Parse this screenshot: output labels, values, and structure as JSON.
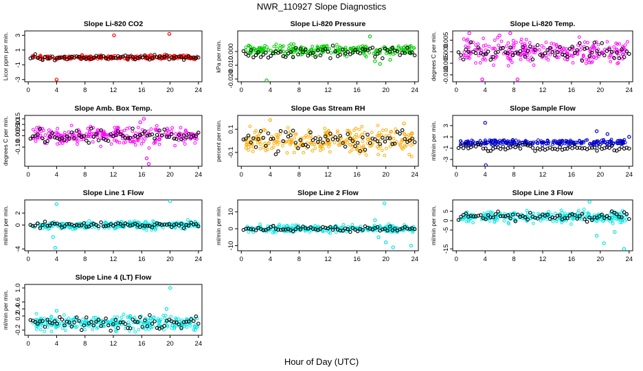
{
  "title": "NWR_110927  Slope Diagnostics",
  "xlabel": "Hour of Day (UTC)",
  "x_ticks": [
    "0",
    "4",
    "8",
    "12",
    "16",
    "20",
    "24"
  ],
  "colors": {
    "reference": "#000000"
  },
  "chart_data": [
    {
      "type": "scatter",
      "title": "Slope Li-820 CO2",
      "ylabel": "Licor ppm per min.",
      "color": "#ff0000",
      "ylim": [
        -3.3,
        3.6
      ],
      "yticks": [
        -3,
        -1,
        1,
        3
      ],
      "yticklabels": [
        "-3",
        "-1",
        "1",
        "3"
      ],
      "ref_center": 0,
      "ref_spread": 0.3,
      "main_center": 0,
      "main_spread": 0.25,
      "outliers": [
        [
          4.0,
          -3.0
        ],
        [
          12.1,
          3.0
        ],
        [
          19.9,
          3.2
        ]
      ]
    },
    {
      "type": "scatter",
      "title": "Slope Li-820 Pressure",
      "ylabel": "kPa per min.",
      "color": "#00cc00",
      "ylim": [
        -0.022,
        0.015
      ],
      "yticks": [
        -0.02,
        -0.01,
        0.0
      ],
      "yticklabels": [
        "-0.020",
        "-0.010",
        "0.000"
      ],
      "ref_center": -0.001,
      "ref_spread": 0.004,
      "main_center": 0.001,
      "main_spread": 0.003,
      "outliers": [
        [
          3.5,
          -0.021
        ],
        [
          17.8,
          0.011
        ],
        [
          18.5,
          -0.007
        ],
        [
          19.2,
          -0.009
        ],
        [
          20.6,
          -0.006
        ]
      ]
    },
    {
      "type": "scatter",
      "title": "Slope Li-820 Temp.",
      "ylabel": "degrees C per min.",
      "color": "#ff00ff",
      "ylim": [
        -0.013,
        0.009
      ],
      "yticks": [
        -0.01,
        -0.005,
        0.0,
        0.005
      ],
      "yticklabels": [
        "-0.010",
        "-0.005",
        "0.000",
        "0.005"
      ],
      "ref_center": 0.0,
      "ref_spread": 0.003,
      "main_center": 0.0,
      "main_spread": 0.004,
      "outliers": [
        [
          1.8,
          0.008
        ],
        [
          3.6,
          -0.012
        ],
        [
          8.5,
          -0.012
        ],
        [
          7.5,
          0.008
        ],
        [
          6.0,
          0.007
        ]
      ]
    },
    {
      "type": "scatter",
      "title": "Slope Amb. Box Temp.",
      "ylabel": "degrees C per min.",
      "color": "#ff00ff",
      "ylim": [
        -0.27,
        0.18
      ],
      "yticks": [
        -0.1,
        0.0,
        0.05,
        0.1,
        0.15
      ],
      "yticklabels": [
        "-0.10",
        "0.00",
        "0.05",
        "0.10",
        "0.15"
      ],
      "ref_center": 0.0,
      "ref_spread": 0.05,
      "main_center": 0.0,
      "main_spread": 0.06,
      "outliers": [
        [
          16.3,
          0.15
        ],
        [
          17.0,
          -0.25
        ],
        [
          16.7,
          -0.2
        ],
        [
          15.8,
          0.12
        ]
      ]
    },
    {
      "type": "scatter",
      "title": "Slope Gas Stream RH",
      "ylabel": "percent per min.",
      "color": "#ffaa00",
      "ylim": [
        -0.22,
        0.22
      ],
      "yticks": [
        -0.1,
        0.1
      ],
      "yticklabels": [
        "-0.1",
        "0.1"
      ],
      "ref_center": 0.0,
      "ref_spread": 0.08,
      "main_center": 0.0,
      "main_spread": 0.09,
      "outliers": [
        [
          4.0,
          0.18
        ],
        [
          22.5,
          0.15
        ]
      ]
    },
    {
      "type": "scatter",
      "title": "Slope Sample Flow",
      "ylabel": "ml/min per min.",
      "color": "#0000cc",
      "ylim": [
        -4.2,
        4.8
      ],
      "yticks": [
        -3,
        -1,
        1,
        3
      ],
      "yticklabels": [
        "-3",
        "-1",
        "1",
        "3"
      ],
      "ref_center": -1.0,
      "ref_spread": 0.5,
      "main_center": 0.0,
      "main_spread": 0.4,
      "outliers": [
        [
          4.0,
          3.5
        ],
        [
          4.1,
          -4.0
        ],
        [
          19.5,
          2.0
        ],
        [
          21.0,
          1.5
        ],
        [
          24.0,
          1.0
        ]
      ]
    },
    {
      "type": "scatter",
      "title": "Slope Line 1 Flow",
      "ylabel": "ml/min per min.",
      "color": "#00e5e5",
      "ylim": [
        -4.3,
        4.2
      ],
      "yticks": [
        -4,
        0,
        2
      ],
      "yticklabels": [
        "-4",
        "0",
        "2"
      ],
      "ref_center": 0.0,
      "ref_spread": 0.4,
      "main_center": 0.0,
      "main_spread": 0.5,
      "outliers": [
        [
          4.0,
          3.5
        ],
        [
          3.8,
          -3.8
        ],
        [
          20.0,
          4.0
        ],
        [
          3.5,
          -2.0
        ]
      ]
    },
    {
      "type": "scatter",
      "title": "Slope Line 2 Flow",
      "ylabel": "ml/min per min.",
      "color": "#00e5e5",
      "ylim": [
        -13,
        17
      ],
      "yticks": [
        -10,
        0,
        10
      ],
      "yticklabels": [
        "-10",
        "0",
        "10"
      ],
      "ref_center": 0.0,
      "ref_spread": 1.5,
      "main_center": 0.0,
      "main_spread": 1.8,
      "outliers": [
        [
          19.8,
          15.0
        ],
        [
          18.5,
          5.0
        ],
        [
          20.0,
          -8.0
        ],
        [
          21.0,
          -11.0
        ],
        [
          23.5,
          -10.0
        ],
        [
          19.0,
          -5.0
        ]
      ]
    },
    {
      "type": "scatter",
      "title": "Slope Line 3 Flow",
      "ylabel": "ml/min per min.",
      "color": "#00e5e5",
      "ylim": [
        -16,
        11
      ],
      "yticks": [
        -15,
        -5,
        0,
        5
      ],
      "yticklabels": [
        "-15",
        "-5",
        "0",
        "5"
      ],
      "ref_center": 2.0,
      "ref_spread": 2.0,
      "main_center": 2.0,
      "main_spread": 2.5,
      "outliers": [
        [
          19.5,
          -8.0
        ],
        [
          20.5,
          -12.0
        ],
        [
          23.3,
          -15.0
        ],
        [
          18.5,
          10.0
        ],
        [
          22.0,
          -6.0
        ]
      ]
    },
    {
      "type": "scatter",
      "title": "Slope Line 4 (LT) Flow",
      "ylabel": "ml/min per min.",
      "color": "#00e5e5",
      "ylim": [
        -0.35,
        1.1
      ],
      "yticks": [
        -0.2,
        0.2,
        0.4,
        0.6,
        1.0
      ],
      "yticklabels": [
        "-0.2",
        "0.2",
        "0.4",
        "0.6",
        "1.0"
      ],
      "ref_center": 0.0,
      "ref_spread": 0.15,
      "main_center": 0.0,
      "main_spread": 0.18,
      "outliers": [
        [
          20.0,
          1.0
        ],
        [
          19.5,
          0.4
        ],
        [
          4.0,
          0.35
        ]
      ]
    }
  ]
}
